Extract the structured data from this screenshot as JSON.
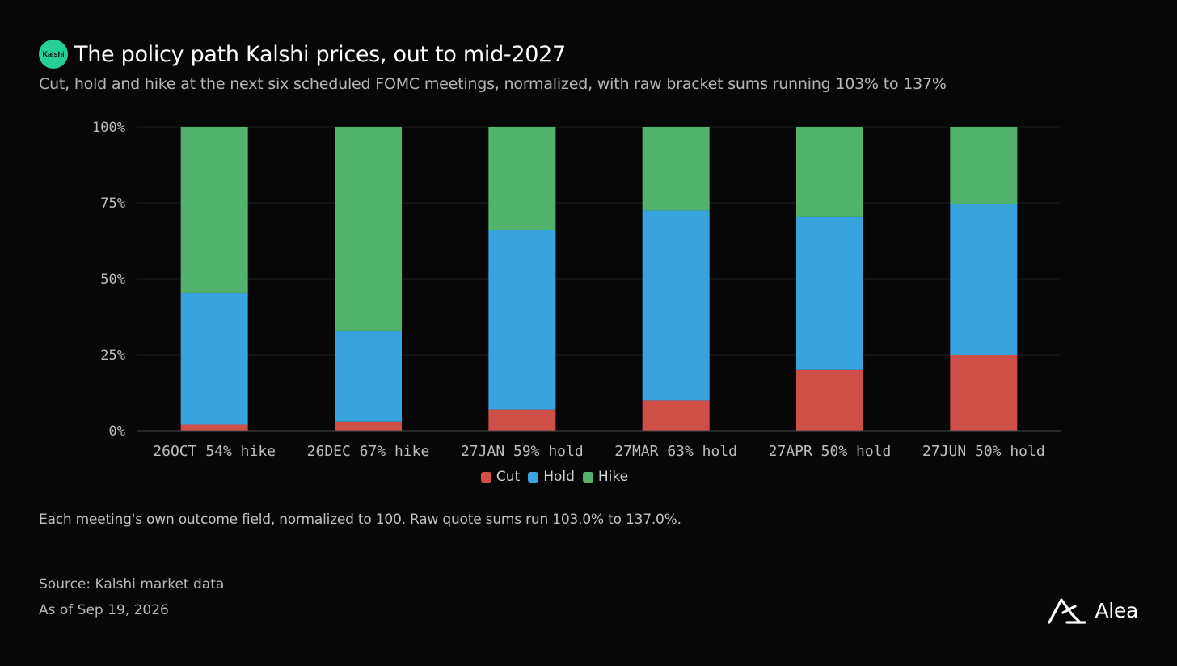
{
  "header": {
    "badge_text": "Kalshi",
    "title": "The policy path Kalshi prices, out to mid-2027",
    "subtitle": "Cut, hold and hike at the next six scheduled FOMC meetings, normalized, with raw bracket sums running 103% to 137%"
  },
  "chart_data": {
    "type": "bar",
    "stacked": true,
    "categories": [
      "26OCT 54% hike",
      "26DEC 67% hike",
      "27JAN 59% hold",
      "27MAR 63% hold",
      "27APR 50% hold",
      "27JUN 50% hold"
    ],
    "series": [
      {
        "name": "Cut",
        "color": "#cd4f47",
        "values": [
          2,
          3,
          7,
          10,
          20,
          25
        ]
      },
      {
        "name": "Hold",
        "color": "#38a3dd",
        "values": [
          43.5,
          30,
          59,
          62.5,
          50.5,
          49.5
        ]
      },
      {
        "name": "Hike",
        "color": "#52b36d",
        "values": [
          54.5,
          67,
          34,
          27.5,
          29.5,
          25.5
        ]
      }
    ],
    "ylim": [
      0,
      100
    ],
    "yticks": [
      "0%",
      "25%",
      "50%",
      "75%",
      "100%"
    ],
    "ytick_values": [
      0,
      25,
      50,
      75,
      100
    ],
    "grid": true,
    "legend_position": "bottom-center"
  },
  "legend": {
    "cut": "Cut",
    "hold": "Hold",
    "hike": "Hike"
  },
  "colors": {
    "background": "#070707",
    "cut": "#cd4f47",
    "hold": "#38a3dd",
    "hike": "#52b36d",
    "badge": "#25d096"
  },
  "footer": {
    "note": "Each meeting's own outcome field, normalized to 100. Raw quote sums run 103.0% to 137.0%.",
    "source": "Source: Kalshi market data",
    "as_of": "As of Sep 19, 2026",
    "brand": "Alea",
    "brand_icon": "alea-logo-icon"
  }
}
